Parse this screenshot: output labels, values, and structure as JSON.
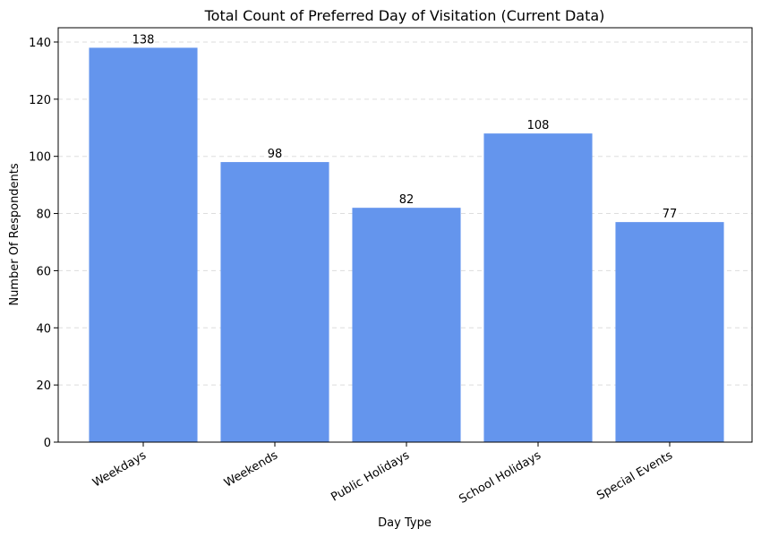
{
  "chart_data": {
    "type": "bar",
    "title": "Total Count of Preferred Day of Visitation (Current Data)",
    "xlabel": "Day Type",
    "ylabel": "Number Of Respondents",
    "categories": [
      "Weekdays",
      "Weekends",
      "Public Holidays",
      "School Holidays",
      "Special Events"
    ],
    "values": [
      138,
      98,
      82,
      108,
      77
    ],
    "data_labels": [
      "138",
      "98",
      "82",
      "108",
      "77"
    ],
    "ylim": [
      0,
      145
    ],
    "yticks": [
      0,
      20,
      40,
      60,
      80,
      100,
      120,
      140
    ],
    "ytick_labels": [
      "0",
      "20",
      "40",
      "60",
      "80",
      "100",
      "120",
      "140"
    ],
    "bar_color": "#6495ED",
    "grid": "y-dashed",
    "legend": "none"
  }
}
